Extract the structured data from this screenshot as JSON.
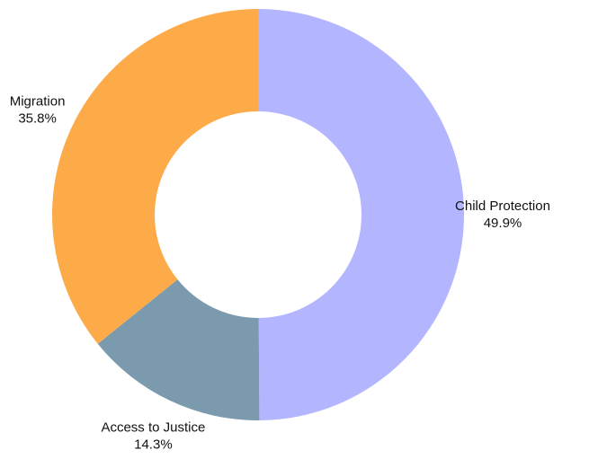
{
  "chart_data": {
    "type": "pie",
    "variant": "donut",
    "title": "",
    "legend": "none",
    "slices": [
      {
        "label": "Child Protection",
        "value": 49.9,
        "display": "49.9%",
        "color": "#b3b5fe"
      },
      {
        "label": "Access to Justice",
        "value": 14.3,
        "display": "14.3%",
        "color": "#7b9aad"
      },
      {
        "label": "Migration",
        "value": 35.8,
        "display": "35.8%",
        "color": "#fdab49"
      }
    ]
  }
}
